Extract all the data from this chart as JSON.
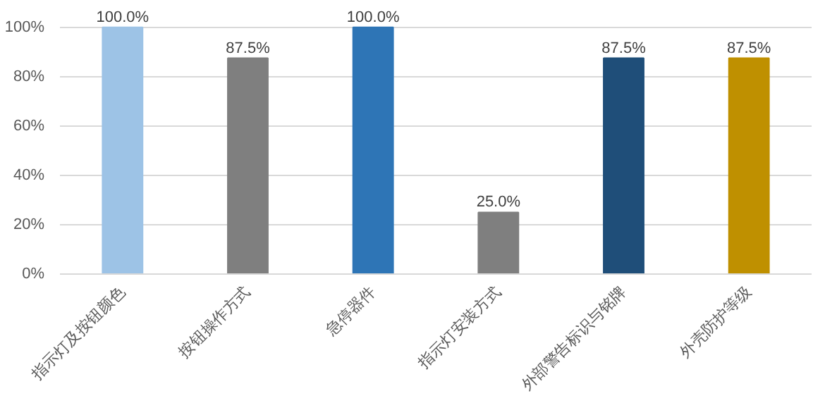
{
  "chart_data": {
    "type": "bar",
    "categories": [
      "指示灯及按钮颜色",
      "按钮操作方式",
      "急停器件",
      "指示灯安装方式",
      "外部警告标识与铭牌",
      "外壳防护等级"
    ],
    "values": [
      100,
      87.5,
      100,
      25,
      87.5,
      87.5
    ],
    "colors": [
      "#9dc3e6",
      "#7f7f7f",
      "#2e75b6",
      "#7f7f7f",
      "#1f4e79",
      "#bf9000"
    ],
    "value_labels": [
      "100.0%",
      "87.5%",
      "100.0%",
      "25.0%",
      "87.5%",
      "87.5%"
    ],
    "ylim": [
      0,
      100
    ],
    "yticks": [
      {
        "value": 0,
        "label": "0%"
      },
      {
        "value": 20,
        "label": "20%"
      },
      {
        "value": 40,
        "label": "40%"
      },
      {
        "value": 60,
        "label": "60%"
      },
      {
        "value": 80,
        "label": "80%"
      },
      {
        "value": 100,
        "label": "100%"
      }
    ],
    "grid": "y"
  }
}
